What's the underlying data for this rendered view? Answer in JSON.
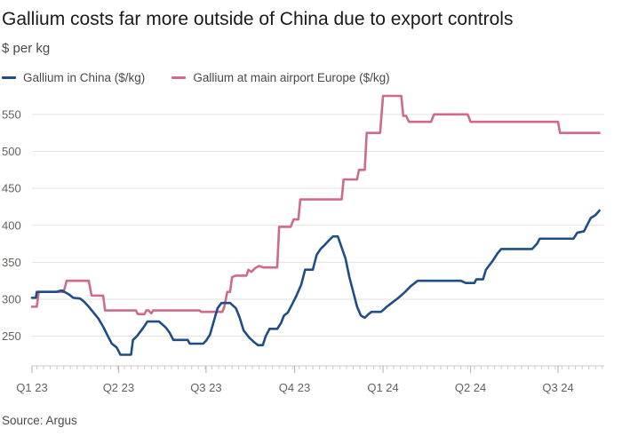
{
  "header": {
    "title": "Gallium costs far more outside of China due to export controls",
    "subtitle": "$ per kg"
  },
  "legend": [
    {
      "label": "Gallium in China ($/kg)",
      "color": "#1e4e85"
    },
    {
      "label": "Gallium at main airport Europe ($/kg)",
      "color": "#cf6a8c"
    }
  ],
  "footer": {
    "source": "Source: Argus"
  },
  "chart_data": {
    "type": "line",
    "title": "Gallium costs far more outside of China due to export controls",
    "ylabel": "$ per kg",
    "xlabel": "",
    "ylim": [
      210,
      575
    ],
    "xlim": [
      "2023-01-01",
      "2024-08-18"
    ],
    "grid": true,
    "legend_position": "top-left",
    "y_ticks": [
      250,
      300,
      350,
      400,
      450,
      500,
      550
    ],
    "x_ticks": [
      {
        "date": "2023-01-01",
        "label": "Q1 23"
      },
      {
        "date": "2023-04-01",
        "label": "Q2 23"
      },
      {
        "date": "2023-07-01",
        "label": "Q3 23"
      },
      {
        "date": "2023-10-01",
        "label": "Q4 23"
      },
      {
        "date": "2024-01-01",
        "label": "Q1 24"
      },
      {
        "date": "2024-04-01",
        "label": "Q2 24"
      },
      {
        "date": "2024-07-01",
        "label": "Q3 24"
      }
    ],
    "series": [
      {
        "name": "Gallium in China ($/kg)",
        "color": "#1e4e85",
        "points": [
          [
            "2023-01-01",
            302
          ],
          [
            "2023-01-05",
            302
          ],
          [
            "2023-01-06",
            310
          ],
          [
            "2023-01-26",
            310
          ],
          [
            "2023-02-01",
            312
          ],
          [
            "2023-02-08",
            307
          ],
          [
            "2023-02-13",
            302
          ],
          [
            "2023-02-20",
            301
          ],
          [
            "2023-02-24",
            297
          ],
          [
            "2023-03-01",
            290
          ],
          [
            "2023-03-06",
            282
          ],
          [
            "2023-03-11",
            274
          ],
          [
            "2023-03-16",
            263
          ],
          [
            "2023-03-21",
            250
          ],
          [
            "2023-03-25",
            240
          ],
          [
            "2023-03-30",
            235
          ],
          [
            "2023-04-03",
            225
          ],
          [
            "2023-04-14",
            225
          ],
          [
            "2023-04-16",
            245
          ],
          [
            "2023-04-20",
            250
          ],
          [
            "2023-04-27",
            262
          ],
          [
            "2023-05-01",
            270
          ],
          [
            "2023-05-13",
            270
          ],
          [
            "2023-05-20",
            262
          ],
          [
            "2023-05-24",
            255
          ],
          [
            "2023-05-28",
            245
          ],
          [
            "2023-06-12",
            245
          ],
          [
            "2023-06-14",
            240
          ],
          [
            "2023-06-28",
            240
          ],
          [
            "2023-07-01",
            244
          ],
          [
            "2023-07-05",
            252
          ],
          [
            "2023-07-09",
            270
          ],
          [
            "2023-07-13",
            288
          ],
          [
            "2023-07-17",
            295
          ],
          [
            "2023-07-26",
            295
          ],
          [
            "2023-08-01",
            288
          ],
          [
            "2023-08-05",
            275
          ],
          [
            "2023-08-09",
            258
          ],
          [
            "2023-08-15",
            248
          ],
          [
            "2023-08-20",
            242
          ],
          [
            "2023-08-24",
            238
          ],
          [
            "2023-08-29",
            238
          ],
          [
            "2023-09-01",
            250
          ],
          [
            "2023-09-05",
            260
          ],
          [
            "2023-09-13",
            260
          ],
          [
            "2023-09-17",
            268
          ],
          [
            "2023-09-20",
            278
          ],
          [
            "2023-09-24",
            282
          ],
          [
            "2023-09-28",
            292
          ],
          [
            "2023-10-03",
            305
          ],
          [
            "2023-10-08",
            320
          ],
          [
            "2023-10-12",
            340
          ],
          [
            "2023-10-20",
            340
          ],
          [
            "2023-10-24",
            360
          ],
          [
            "2023-10-28",
            368
          ],
          [
            "2023-11-01",
            373
          ],
          [
            "2023-11-06",
            380
          ],
          [
            "2023-11-10",
            385
          ],
          [
            "2023-11-15",
            385
          ],
          [
            "2023-11-19",
            370
          ],
          [
            "2023-11-23",
            355
          ],
          [
            "2023-11-27",
            330
          ],
          [
            "2023-12-01",
            310
          ],
          [
            "2023-12-05",
            290
          ],
          [
            "2023-12-09",
            278
          ],
          [
            "2023-12-13",
            275
          ],
          [
            "2023-12-17",
            280
          ],
          [
            "2023-12-20",
            283
          ],
          [
            "2023-12-30",
            283
          ],
          [
            "2024-01-05",
            290
          ],
          [
            "2024-01-10",
            295
          ],
          [
            "2024-01-17",
            302
          ],
          [
            "2024-01-24",
            310
          ],
          [
            "2024-01-30",
            318
          ],
          [
            "2024-02-06",
            325
          ],
          [
            "2024-03-22",
            325
          ],
          [
            "2024-03-27",
            322
          ],
          [
            "2024-04-05",
            322
          ],
          [
            "2024-04-07",
            327
          ],
          [
            "2024-04-14",
            327
          ],
          [
            "2024-04-17",
            340
          ],
          [
            "2024-04-24",
            352
          ],
          [
            "2024-04-29",
            362
          ],
          [
            "2024-05-03",
            368
          ],
          [
            "2024-06-04",
            368
          ],
          [
            "2024-06-09",
            375
          ],
          [
            "2024-06-12",
            382
          ],
          [
            "2024-07-17",
            382
          ],
          [
            "2024-07-21",
            390
          ],
          [
            "2024-07-28",
            392
          ],
          [
            "2024-08-04",
            410
          ],
          [
            "2024-08-09",
            414
          ],
          [
            "2024-08-13",
            420
          ]
        ]
      },
      {
        "name": "Gallium at main airport Europe ($/kg)",
        "color": "#cf6a8c",
        "points": [
          [
            "2023-01-01",
            290
          ],
          [
            "2023-01-06",
            290
          ],
          [
            "2023-01-08",
            310
          ],
          [
            "2023-02-03",
            310
          ],
          [
            "2023-02-06",
            325
          ],
          [
            "2023-03-01",
            325
          ],
          [
            "2023-03-04",
            305
          ],
          [
            "2023-03-16",
            305
          ],
          [
            "2023-03-18",
            285
          ],
          [
            "2023-04-19",
            285
          ],
          [
            "2023-04-21",
            280
          ],
          [
            "2023-04-28",
            280
          ],
          [
            "2023-04-30",
            285
          ],
          [
            "2023-05-02",
            285
          ],
          [
            "2023-05-05",
            281
          ],
          [
            "2023-05-07",
            285
          ],
          [
            "2023-06-24",
            285
          ],
          [
            "2023-06-26",
            283
          ],
          [
            "2023-07-18",
            283
          ],
          [
            "2023-07-20",
            290
          ],
          [
            "2023-07-23",
            310
          ],
          [
            "2023-07-26",
            310
          ],
          [
            "2023-07-28",
            330
          ],
          [
            "2023-08-01",
            332
          ],
          [
            "2023-08-12",
            332
          ],
          [
            "2023-08-14",
            340
          ],
          [
            "2023-08-17",
            337
          ],
          [
            "2023-08-21",
            342
          ],
          [
            "2023-08-25",
            345
          ],
          [
            "2023-08-30",
            343
          ],
          [
            "2023-09-13",
            343
          ],
          [
            "2023-09-15",
            398
          ],
          [
            "2023-09-27",
            398
          ],
          [
            "2023-09-30",
            408
          ],
          [
            "2023-10-05",
            408
          ],
          [
            "2023-10-07",
            435
          ],
          [
            "2023-11-19",
            435
          ],
          [
            "2023-11-21",
            462
          ],
          [
            "2023-12-05",
            462
          ],
          [
            "2023-12-07",
            475
          ],
          [
            "2023-12-13",
            475
          ],
          [
            "2023-12-15",
            525
          ],
          [
            "2023-12-29",
            525
          ],
          [
            "2024-01-01",
            575
          ],
          [
            "2024-01-20",
            575
          ],
          [
            "2024-01-22",
            548
          ],
          [
            "2024-01-25",
            548
          ],
          [
            "2024-01-28",
            540
          ],
          [
            "2024-02-20",
            540
          ],
          [
            "2024-02-23",
            550
          ],
          [
            "2024-03-29",
            550
          ],
          [
            "2024-04-01",
            540
          ],
          [
            "2024-07-01",
            540
          ],
          [
            "2024-07-03",
            525
          ],
          [
            "2024-08-13",
            525
          ]
        ]
      }
    ]
  }
}
